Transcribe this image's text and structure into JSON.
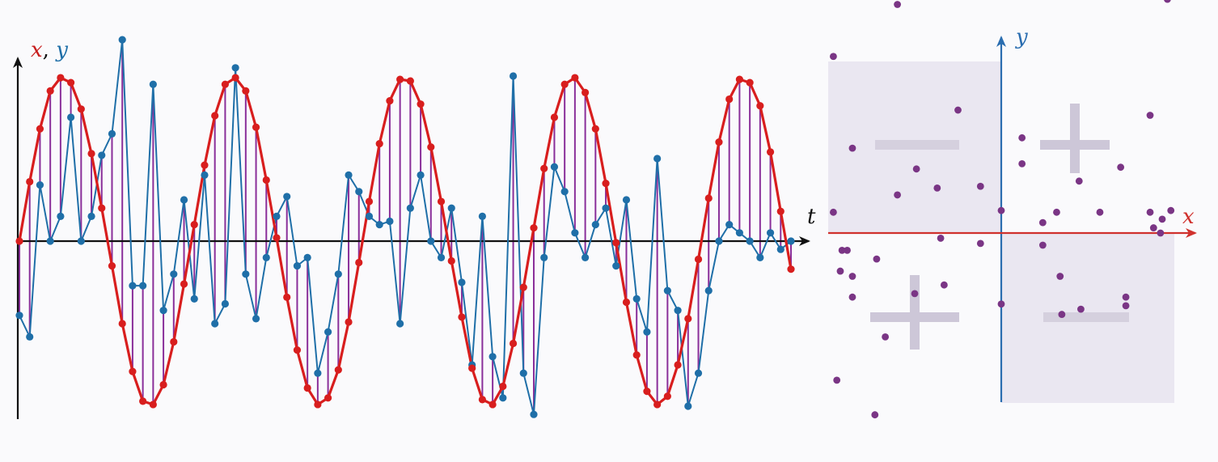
{
  "chart_data": [
    {
      "type": "line",
      "title": "",
      "axis_labels": {
        "x_label": "x",
        "comma": ", ",
        "y_label": "y",
        "t_label": "t"
      },
      "colors": {
        "x_series": "#d81e1e",
        "y_series": "#1f6fa8",
        "stem": "#8a2f9a",
        "axis": "#111111"
      },
      "t": [
        0,
        1,
        2,
        3,
        4,
        5,
        6,
        7,
        8,
        9,
        10,
        11,
        12,
        13,
        14,
        15,
        16,
        17,
        18,
        19,
        20,
        21,
        22,
        23,
        24,
        25,
        26,
        27,
        28,
        29,
        30,
        31,
        32,
        33,
        34,
        35,
        36,
        37,
        38,
        39,
        40,
        41,
        42,
        43,
        44,
        45,
        46,
        47,
        48,
        49,
        50,
        51,
        52,
        53,
        54,
        55,
        56,
        57,
        58,
        59,
        60,
        61,
        62,
        63,
        64,
        65,
        66,
        67,
        68,
        69,
        70,
        71,
        72,
        73,
        74,
        75
      ],
      "series": [
        {
          "values": [
            0,
            0.36,
            0.68,
            0.91,
            0.99,
            0.96,
            0.8,
            0.53,
            0.2,
            -0.15,
            -0.5,
            -0.79,
            -0.97,
            -0.99,
            -0.87,
            -0.61,
            -0.26,
            0.1,
            0.46,
            0.76,
            0.95,
            0.99,
            0.91,
            0.69,
            0.37,
            0.02,
            -0.34,
            -0.66,
            -0.89,
            -0.99,
            -0.95,
            -0.78,
            -0.49,
            -0.13,
            0.24,
            0.59,
            0.85,
            0.98,
            0.97,
            0.83,
            0.57,
            0.24,
            -0.12,
            -0.46,
            -0.77,
            -0.96,
            -0.99,
            -0.88,
            -0.62,
            -0.28,
            0.08,
            0.44,
            0.75,
            0.95,
            0.99,
            0.9,
            0.68,
            0.35,
            -0.01,
            -0.37,
            -0.69,
            -0.91,
            -0.99,
            -0.94,
            -0.75,
            -0.47,
            -0.11,
            0.26,
            0.6,
            0.86,
            0.98,
            0.96,
            0.82,
            0.54,
            0.18,
            -0.17
          ]
        },
        {
          "values": [
            -0.45,
            -0.58,
            0.34,
            0,
            0.15,
            0.75,
            0,
            0.15,
            0.52,
            0.65,
            1.22,
            -0.27,
            -0.27,
            0.95,
            -0.42,
            -0.2,
            0.25,
            -0.35,
            0.4,
            -0.5,
            -0.38,
            1.05,
            -0.2,
            -0.47,
            -0.1,
            0.15,
            0.27,
            -0.15,
            -0.1,
            -0.8,
            -0.55,
            -0.2,
            0.4,
            0.3,
            0.15,
            0.1,
            0.12,
            -0.5,
            0.2,
            0.4,
            0,
            -0.1,
            0.2,
            -0.25,
            -0.75,
            0.15,
            -0.7,
            -0.95,
            1.0,
            -0.8,
            -1.05,
            -0.1,
            0.45,
            0.3,
            0.05,
            -0.1,
            0.1,
            0.2,
            -0.15,
            0.25,
            -0.35,
            -0.55,
            0.5,
            -0.3,
            -0.42,
            -1.0,
            -0.8,
            -0.3,
            0.0,
            0.1,
            0.05,
            0.0,
            -0.1,
            0.05,
            -0.05,
            0.0
          ]
        }
      ],
      "ylim": [
        -1.35,
        1.35
      ]
    },
    {
      "type": "scatter",
      "title": "",
      "axis_labels": {
        "x_label": "x",
        "y_label": "y"
      },
      "quadrant_signs": {
        "q1": "+",
        "q2": "−",
        "q3": "+",
        "q4": "−"
      },
      "colors": {
        "point": "#7a3585",
        "x_axis": "#d0312d",
        "y_axis": "#2a6db0",
        "positive_glyph": "#c9c3d4",
        "negative_glyph": "#c9c3d4",
        "shade": "#e6e3ee"
      },
      "xlim": [
        -1.0,
        1.12
      ],
      "ylim": [
        -1.35,
        1.35
      ],
      "points": [
        [
          -0.6,
          1.32
        ],
        [
          0.96,
          1.35
        ],
        [
          -0.97,
          1.02
        ],
        [
          -0.25,
          0.71
        ],
        [
          0.12,
          0.55
        ],
        [
          0.86,
          0.68
        ],
        [
          -0.86,
          0.49
        ],
        [
          -0.49,
          0.37
        ],
        [
          0.12,
          0.4
        ],
        [
          0.69,
          0.38
        ],
        [
          -0.37,
          0.26
        ],
        [
          -0.12,
          0.27
        ],
        [
          -0.6,
          0.22
        ],
        [
          0.45,
          0.3
        ],
        [
          -0.97,
          0.12
        ],
        [
          0.0,
          0.13
        ],
        [
          0.24,
          0.06
        ],
        [
          0.32,
          0.12
        ],
        [
          0.57,
          0.12
        ],
        [
          0.86,
          0.12
        ],
        [
          0.93,
          0.08
        ],
        [
          0.98,
          0.13
        ],
        [
          0.88,
          0.03
        ],
        [
          0.92,
          0.0
        ],
        [
          -0.35,
          -0.03
        ],
        [
          -0.12,
          -0.06
        ],
        [
          0.24,
          -0.07
        ],
        [
          -0.92,
          -0.1
        ],
        [
          -0.89,
          -0.1
        ],
        [
          -0.72,
          -0.15
        ],
        [
          -0.93,
          -0.22
        ],
        [
          -0.86,
          -0.25
        ],
        [
          0.34,
          -0.25
        ],
        [
          -0.33,
          -0.3
        ],
        [
          -0.5,
          -0.35
        ],
        [
          -0.86,
          -0.37
        ],
        [
          0.72,
          -0.37
        ],
        [
          0.0,
          -0.41
        ],
        [
          0.72,
          -0.42
        ],
        [
          0.46,
          -0.44
        ],
        [
          0.35,
          -0.47
        ],
        [
          -0.67,
          -0.6
        ],
        [
          -0.95,
          -0.85
        ],
        [
          -0.73,
          -1.05
        ]
      ]
    }
  ]
}
